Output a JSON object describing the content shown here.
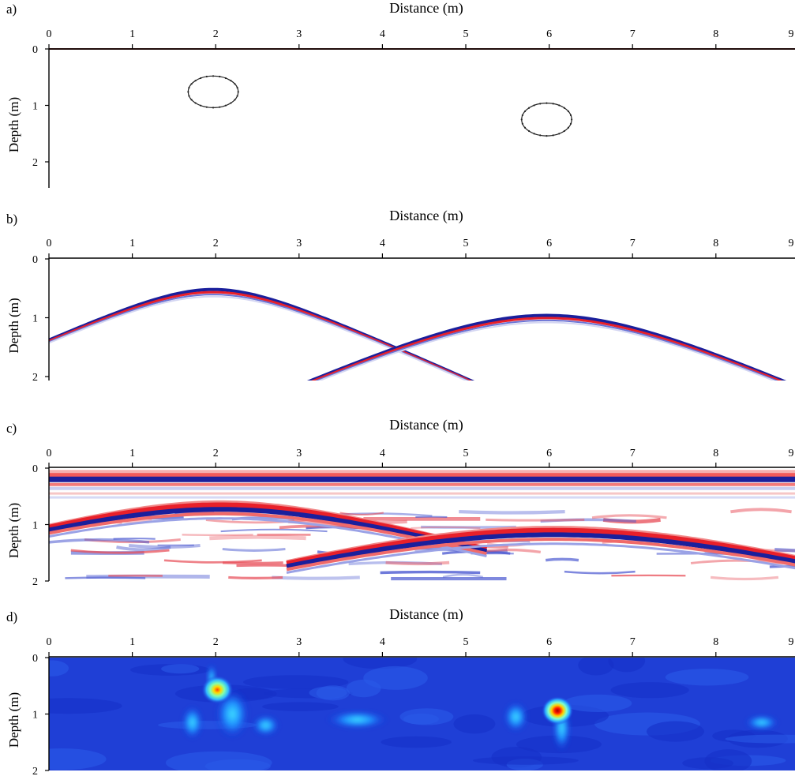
{
  "chart_data": [
    {
      "type": "scatter",
      "panel_label": "a)",
      "xlabel": "Distance (m)",
      "ylabel": "Depth (m)",
      "xlim": [
        0,
        9
      ],
      "ylim": [
        0,
        2.5
      ],
      "xticks": [
        "0",
        "1",
        "2",
        "3",
        "4",
        "5",
        "6",
        "7",
        "8",
        "9"
      ],
      "yticks": [
        "0",
        "1",
        "2"
      ],
      "objects": [
        {
          "shape": "ellipse",
          "cx": 1.97,
          "cy": 0.76,
          "rx": 0.3,
          "ry": 0.28
        },
        {
          "shape": "ellipse",
          "cx": 5.97,
          "cy": 1.25,
          "rx": 0.3,
          "ry": 0.29
        }
      ],
      "surface_line_color": "#7a2a24"
    },
    {
      "type": "heatmap",
      "panel_label": "b)",
      "xlabel": "Distance (m)",
      "ylabel": "Depth (m)",
      "xlim": [
        0,
        9
      ],
      "ylim": [
        0,
        2.1
      ],
      "xticks": [
        "0",
        "1",
        "2",
        "3",
        "4",
        "5",
        "6",
        "7",
        "8",
        "9"
      ],
      "yticks": [
        "0",
        "1",
        "2"
      ],
      "hyperbolas": [
        {
          "apex_x": 1.97,
          "apex_depth": 0.52
        },
        {
          "apex_x": 5.97,
          "apex_depth": 0.96
        }
      ],
      "colors": {
        "positive": "#e8202a",
        "negative": "#1a1f9c"
      }
    },
    {
      "type": "heatmap",
      "panel_label": "c)",
      "xlabel": "Distance (m)",
      "ylabel": "Depth (m)",
      "xlim": [
        0,
        9
      ],
      "ylim": [
        0,
        2
      ],
      "xticks": [
        "0",
        "1",
        "2",
        "3",
        "4",
        "5",
        "6",
        "7",
        "8",
        "9"
      ],
      "yticks": [
        "0",
        "1",
        "2"
      ],
      "direct_wave_depth": 0.2,
      "hyperbolas": [
        {
          "apex_x": 2.05,
          "apex_depth": 0.65
        },
        {
          "apex_x": 6.05,
          "apex_depth": 1.1
        }
      ],
      "colors": {
        "positive": "#e8202a",
        "negative": "#1a1f9c"
      }
    },
    {
      "type": "heatmap",
      "panel_label": "d)",
      "xlabel": "Distance (m)",
      "ylabel": "Depth (m)",
      "xlim": [
        0,
        9
      ],
      "ylim": [
        0,
        2
      ],
      "xticks": [
        "0",
        "1",
        "2",
        "3",
        "4",
        "5",
        "6",
        "7",
        "8",
        "9"
      ],
      "yticks": [
        "0",
        "1",
        "2"
      ],
      "focal_points": [
        {
          "x": 2.02,
          "depth": 0.57,
          "peak": "yellow-red"
        },
        {
          "x": 6.1,
          "depth": 0.94,
          "peak": "red"
        }
      ],
      "colormap": "jet"
    }
  ]
}
